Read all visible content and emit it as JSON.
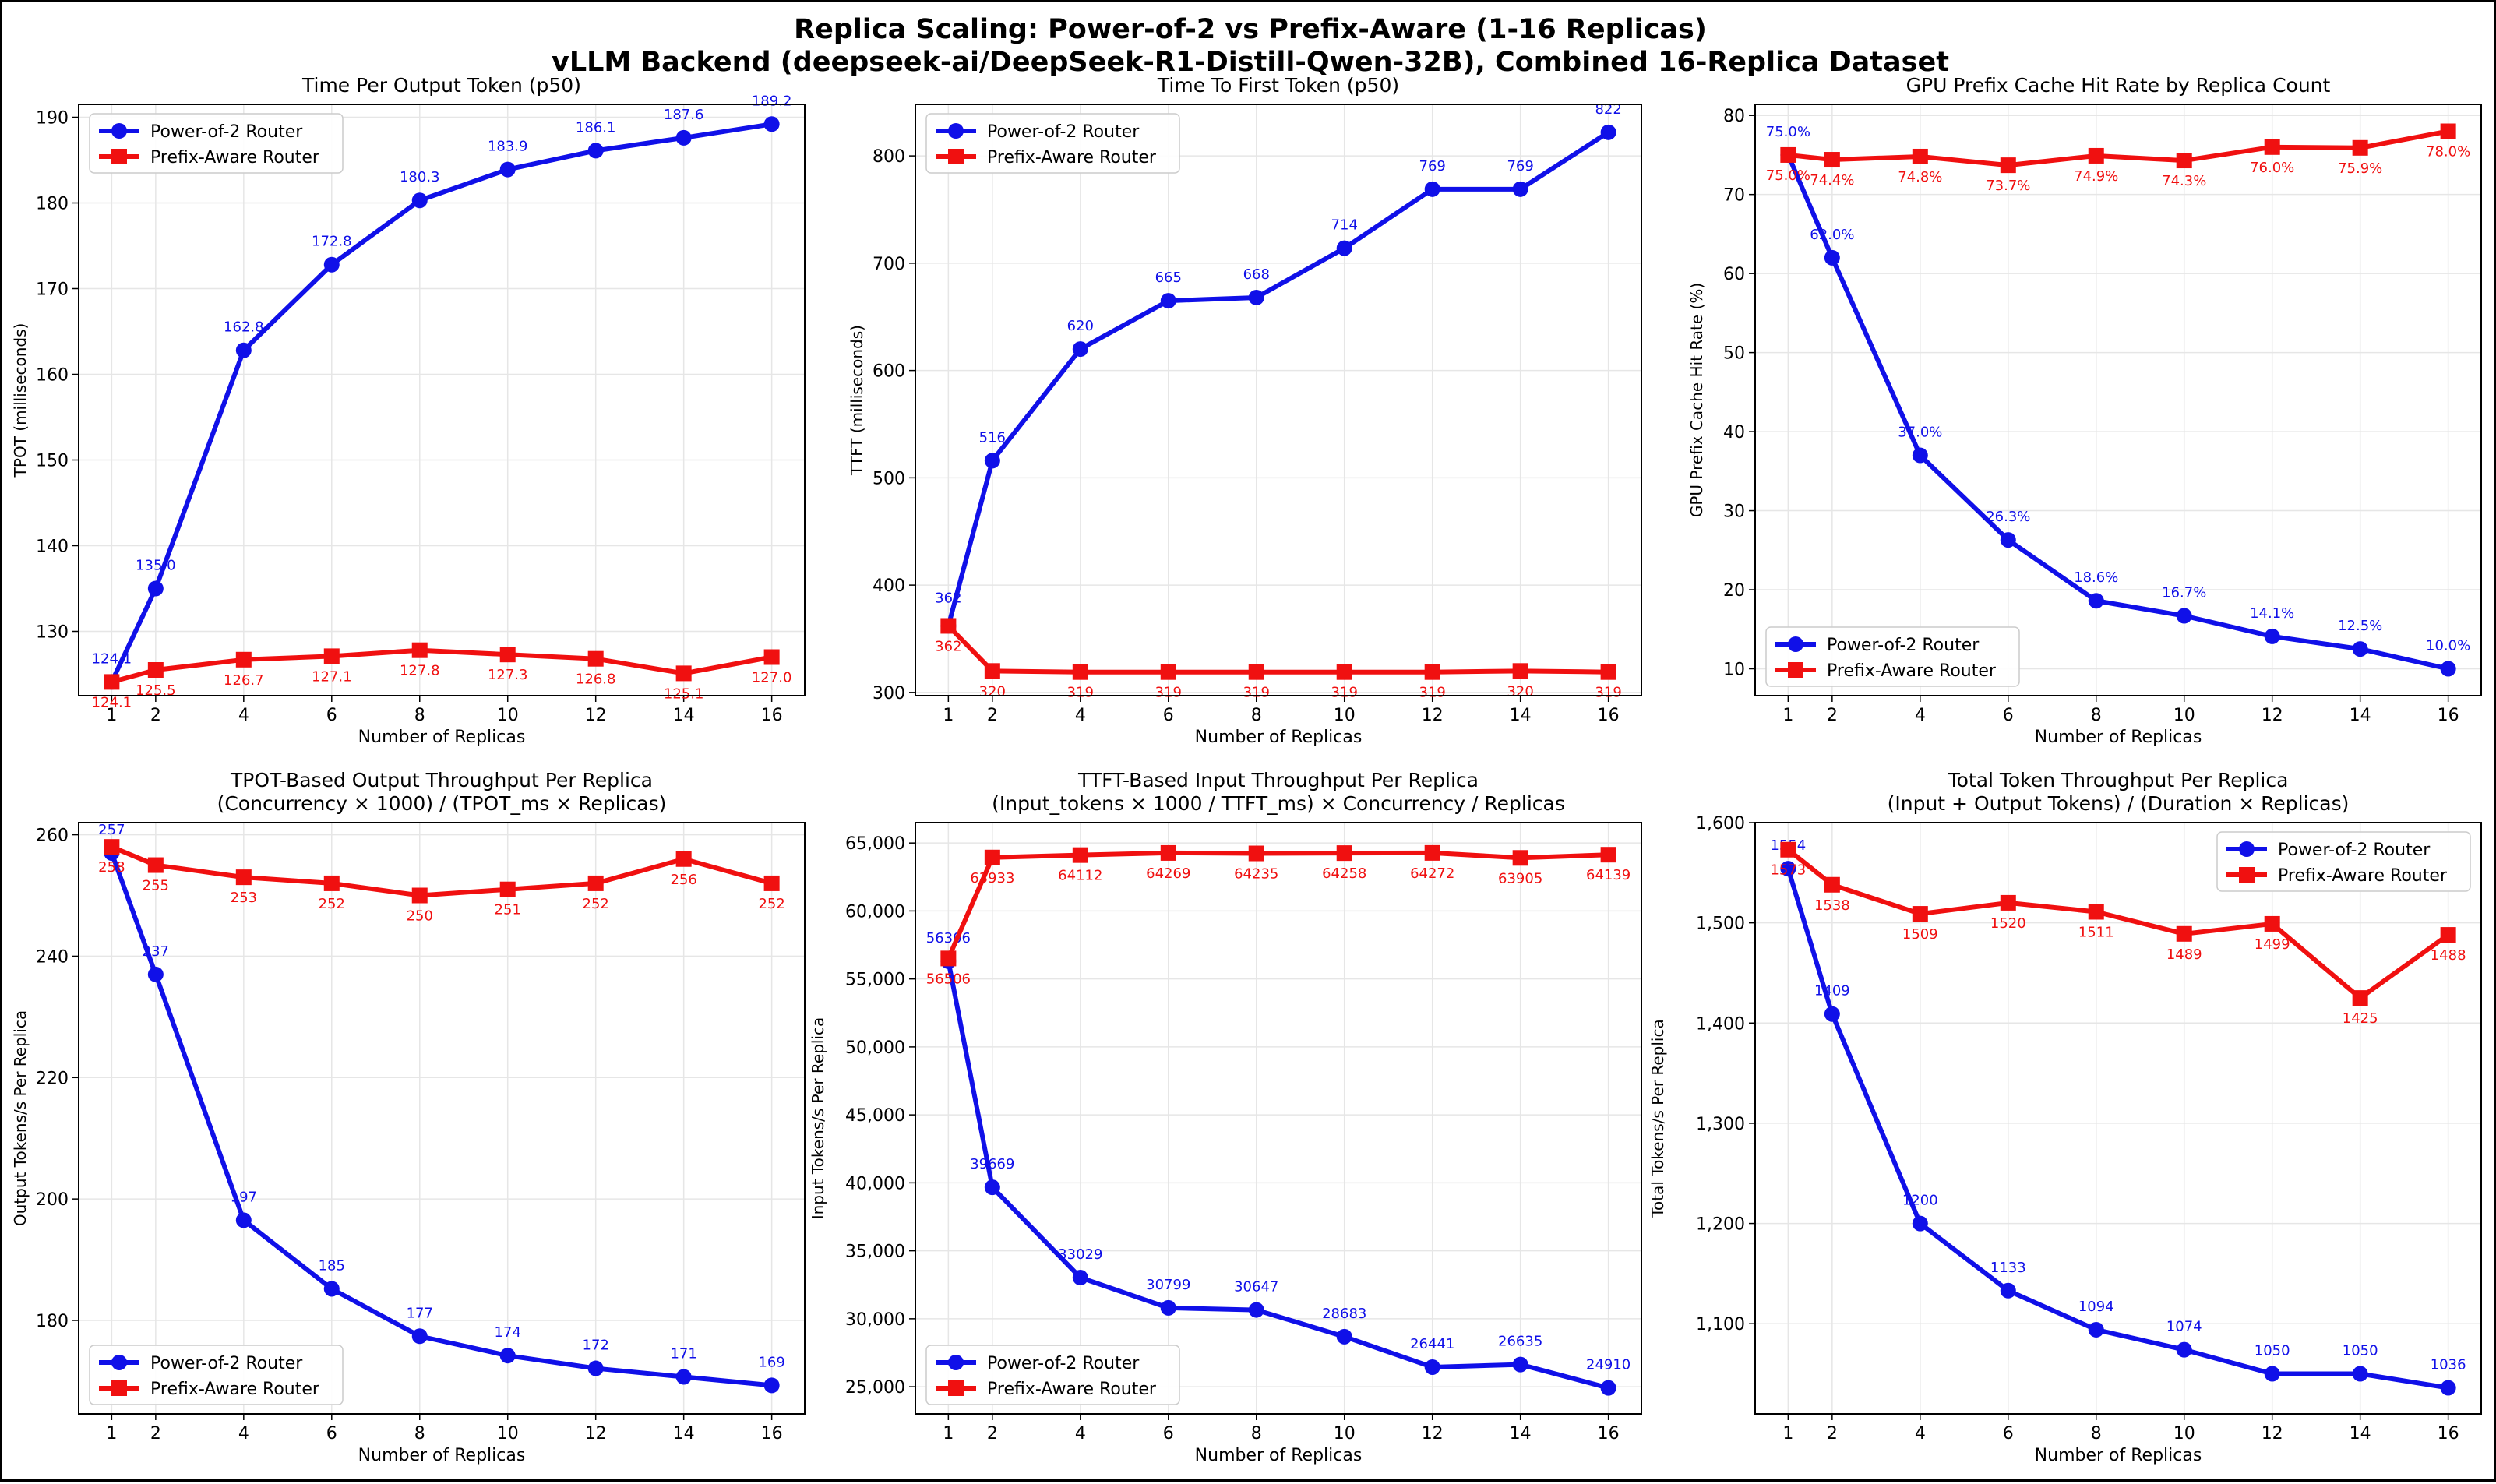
{
  "figure": {
    "suptitle_line1": "Replica Scaling: Power-of-2 vs Prefix-Aware (1-16 Replicas)",
    "suptitle_line2": "vLLM Backend (deepseek-ai/DeepSeek-R1-Distill-Qwen-32B), Combined 16-Replica Dataset"
  },
  "colors": {
    "power_of_2": "#1010e8",
    "prefix_aware": "#f01010",
    "grid": "#e6e6e6"
  },
  "chart_data": [
    {
      "type": "line",
      "title_lines": [
        "Time Per Output Token (p50)"
      ],
      "xlabel": "Number of Replicas",
      "ylabel": "TPOT (milliseconds)",
      "x": [
        1,
        2,
        4,
        6,
        8,
        10,
        12,
        14,
        16
      ],
      "xticks": [
        1,
        2,
        4,
        6,
        8,
        10,
        12,
        14,
        16
      ],
      "ylim": [
        122.5,
        191.5
      ],
      "yticks": [
        130,
        140,
        150,
        160,
        170,
        180,
        190
      ],
      "ytick_labels": [
        "130",
        "140",
        "150",
        "160",
        "170",
        "180",
        "190"
      ],
      "legend": "top-left",
      "grid": true,
      "series": [
        {
          "name": "Power-of-2 Router",
          "marker": "circle",
          "values": [
            124.1,
            135.0,
            162.8,
            172.8,
            180.3,
            183.9,
            186.1,
            187.6,
            189.2
          ],
          "labels": [
            "124.1",
            "135.0",
            "162.8",
            "172.8",
            "180.3",
            "183.9",
            "186.1",
            "187.6",
            "189.2"
          ]
        },
        {
          "name": "Prefix-Aware Router",
          "marker": "square",
          "values": [
            124.1,
            125.5,
            126.7,
            127.1,
            127.8,
            127.3,
            126.8,
            125.1,
            127.0
          ],
          "labels": [
            "124.1",
            "125.5",
            "126.7",
            "127.1",
            "127.8",
            "127.3",
            "126.8",
            "125.1",
            "127.0"
          ]
        }
      ]
    },
    {
      "type": "line",
      "title_lines": [
        "Time To First Token (p50)"
      ],
      "xlabel": "Number of Replicas",
      "ylabel": "TTFT (milliseconds)",
      "x": [
        1,
        2,
        4,
        6,
        8,
        10,
        12,
        14,
        16
      ],
      "xticks": [
        1,
        2,
        4,
        6,
        8,
        10,
        12,
        14,
        16
      ],
      "ylim": [
        297,
        848
      ],
      "yticks": [
        300,
        400,
        500,
        600,
        700,
        800
      ],
      "ytick_labels": [
        "300",
        "400",
        "500",
        "600",
        "700",
        "800"
      ],
      "legend": "top-left",
      "grid": true,
      "series": [
        {
          "name": "Power-of-2 Router",
          "marker": "circle",
          "values": [
            362,
            516,
            620,
            665,
            668,
            714,
            769,
            769,
            822
          ],
          "labels": [
            "362",
            "516",
            "620",
            "665",
            "668",
            "714",
            "769",
            "769",
            "822"
          ]
        },
        {
          "name": "Prefix-Aware Router",
          "marker": "square",
          "values": [
            362,
            320,
            319,
            319,
            319,
            319,
            319,
            320,
            319
          ],
          "labels": [
            "362",
            "320",
            "319",
            "319",
            "319",
            "319",
            "319",
            "320",
            "319"
          ]
        }
      ]
    },
    {
      "type": "line",
      "title_lines": [
        "GPU Prefix Cache Hit Rate by Replica Count"
      ],
      "xlabel": "Number of Replicas",
      "ylabel": "GPU Prefix Cache Hit Rate (%)",
      "x": [
        1,
        2,
        4,
        6,
        8,
        10,
        12,
        14,
        16
      ],
      "xticks": [
        1,
        2,
        4,
        6,
        8,
        10,
        12,
        14,
        16
      ],
      "ylim": [
        6.6,
        81.4
      ],
      "yticks": [
        10,
        20,
        30,
        40,
        50,
        60,
        70,
        80
      ],
      "ytick_labels": [
        "10",
        "20",
        "30",
        "40",
        "50",
        "60",
        "70",
        "80"
      ],
      "legend": "bottom-left",
      "grid": true,
      "series": [
        {
          "name": "Power-of-2 Router",
          "marker": "circle",
          "values": [
            75.0,
            62.0,
            37.0,
            26.3,
            18.6,
            16.7,
            14.1,
            12.5,
            10.0
          ],
          "labels": [
            "75.0%",
            "62.0%",
            "37.0%",
            "26.3%",
            "18.6%",
            "16.7%",
            "14.1%",
            "12.5%",
            "10.0%"
          ]
        },
        {
          "name": "Prefix-Aware Router",
          "marker": "square",
          "values": [
            75.0,
            74.4,
            74.8,
            73.7,
            74.9,
            74.3,
            76.0,
            75.9,
            78.0
          ],
          "labels": [
            "75.0%",
            "74.4%",
            "74.8%",
            "73.7%",
            "74.9%",
            "74.3%",
            "76.0%",
            "75.9%",
            "78.0%"
          ]
        }
      ]
    },
    {
      "type": "line",
      "title_lines": [
        "TPOT-Based Output Throughput Per Replica",
        "(Concurrency × 1000) / (TPOT_ms × Replicas)"
      ],
      "xlabel": "Number of Replicas",
      "ylabel": "Output Tokens/s Per Replica",
      "x": [
        1,
        2,
        4,
        6,
        8,
        10,
        12,
        14,
        16
      ],
      "xticks": [
        1,
        2,
        4,
        6,
        8,
        10,
        12,
        14,
        16
      ],
      "ylim": [
        164.6,
        262.0
      ],
      "yticks": [
        180,
        200,
        220,
        240,
        260
      ],
      "ytick_labels": [
        "180",
        "200",
        "220",
        "240",
        "260"
      ],
      "legend": "bottom-left",
      "grid": true,
      "series": [
        {
          "name": "Power-of-2 Router",
          "marker": "circle",
          "values": [
            257,
            237,
            196.5,
            185.2,
            177.4,
            174.2,
            172.1,
            170.7,
            169.3
          ],
          "labels": [
            "257",
            "237",
            "197",
            "185",
            "177",
            "174",
            "172",
            "171",
            "169"
          ]
        },
        {
          "name": "Prefix-Aware Router",
          "marker": "square",
          "values": [
            258,
            255,
            253,
            252,
            250,
            251,
            252,
            256,
            252
          ],
          "labels": [
            "258",
            "255",
            "253",
            "252",
            "250",
            "251",
            "252",
            "256",
            "252"
          ]
        }
      ]
    },
    {
      "type": "line",
      "title_lines": [
        "TTFT-Based Input Throughput Per Replica",
        "(Input_tokens × 1000 / TTFT_ms) × Concurrency / Replicas"
      ],
      "xlabel": "Number of Replicas",
      "ylabel": "Input Tokens/s Per Replica",
      "x": [
        1,
        2,
        4,
        6,
        8,
        10,
        12,
        14,
        16
      ],
      "xticks": [
        1,
        2,
        4,
        6,
        8,
        10,
        12,
        14,
        16
      ],
      "ylim": [
        23000,
        66500
      ],
      "yticks": [
        25000,
        30000,
        35000,
        40000,
        45000,
        50000,
        55000,
        60000,
        65000
      ],
      "ytick_labels": [
        "25,000",
        "30,000",
        "35,000",
        "40,000",
        "45,000",
        "50,000",
        "55,000",
        "60,000",
        "65,000"
      ],
      "legend": "bottom-left",
      "grid": true,
      "series": [
        {
          "name": "Power-of-2 Router",
          "marker": "circle",
          "values": [
            56306,
            39669,
            33029,
            30799,
            30647,
            28683,
            26441,
            26635,
            24910
          ],
          "labels": [
            "56306",
            "39669",
            "33029",
            "30799",
            "30647",
            "28683",
            "26441",
            "26635",
            "24910"
          ]
        },
        {
          "name": "Prefix-Aware Router",
          "marker": "square",
          "values": [
            56506,
            63933,
            64112,
            64269,
            64235,
            64258,
            64272,
            63905,
            64139
          ],
          "labels": [
            "56506",
            "63933",
            "64112",
            "64269",
            "64235",
            "64258",
            "64272",
            "63905",
            "64139"
          ]
        }
      ]
    },
    {
      "type": "line",
      "title_lines": [
        "Total Token Throughput Per Replica",
        "(Input + Output Tokens) / (Duration × Replicas)"
      ],
      "xlabel": "Number of Replicas",
      "ylabel": "Total Tokens/s Per Replica",
      "x": [
        1,
        2,
        4,
        6,
        8,
        10,
        12,
        14,
        16
      ],
      "xticks": [
        1,
        2,
        4,
        6,
        8,
        10,
        12,
        14,
        16
      ],
      "ylim": [
        1010,
        1600
      ],
      "yticks": [
        1100,
        1200,
        1300,
        1400,
        1500,
        1600
      ],
      "ytick_labels": [
        "1,100",
        "1,200",
        "1,300",
        "1,400",
        "1,500",
        "1,600"
      ],
      "legend": "top-right",
      "grid": true,
      "series": [
        {
          "name": "Power-of-2 Router",
          "marker": "circle",
          "values": [
            1554,
            1409,
            1200,
            1133,
            1094,
            1074,
            1050,
            1050,
            1036
          ],
          "labels": [
            "1554",
            "1409",
            "1200",
            "1133",
            "1094",
            "1074",
            "1050",
            "1050",
            "1036"
          ]
        },
        {
          "name": "Prefix-Aware Router",
          "marker": "square",
          "values": [
            1573,
            1538,
            1509,
            1520,
            1511,
            1489,
            1499,
            1425,
            1488
          ],
          "labels": [
            "1573",
            "1538",
            "1509",
            "1520",
            "1511",
            "1489",
            "1499",
            "1425",
            "1488"
          ]
        }
      ]
    }
  ]
}
